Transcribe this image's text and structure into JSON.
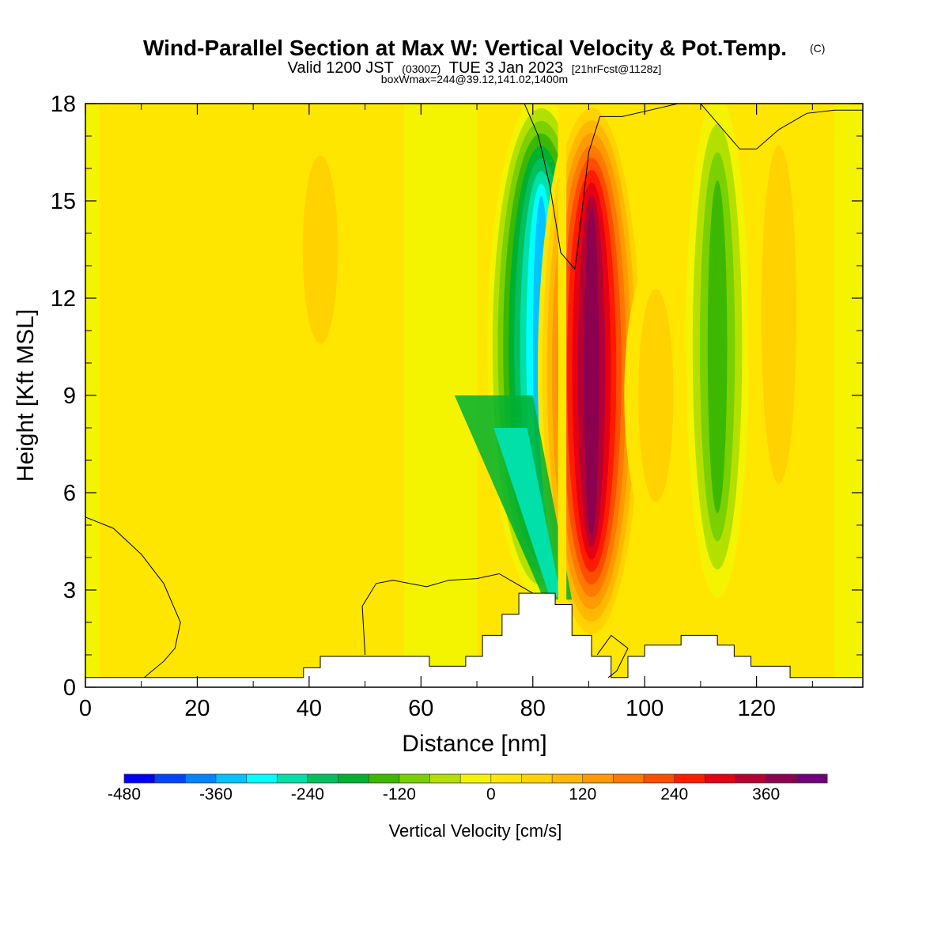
{
  "titles": {
    "main": "Wind-Parallel Section at Max W: Vertical Velocity & Pot.Temp.",
    "main_mark": "(C)",
    "sub_a": "Valid 1200 JST",
    "sub_b": "(0300Z)",
    "sub_c": "TUE 3 Jan 2023",
    "sub_d": "[21hrFcst@1128z]",
    "line3": "boxWmax=244@39.12,141.02,1400m"
  },
  "chart_data": {
    "type": "heatmap",
    "title": "Wind-Parallel Section at Max W: Vertical Velocity & Pot.Temp.",
    "xlabel": "Distance [nm]",
    "ylabel": "Height [Kft MSL]",
    "xlim": [
      0,
      139
    ],
    "ylim": [
      0,
      18
    ],
    "x_ticks": [
      "0",
      "20",
      "40",
      "60",
      "80",
      "100",
      "120"
    ],
    "y_ticks": [
      "0",
      "3",
      "6",
      "9",
      "12",
      "15",
      "18"
    ],
    "field": "Vertical Velocity [cm/s]",
    "features": [
      {
        "name": "downdraft core",
        "x": 81.5,
        "z_range": [
          3,
          18
        ],
        "min_value": -360
      },
      {
        "name": "updraft core",
        "x": 90.5,
        "z_range": [
          1.5,
          18
        ],
        "max_value": 390
      },
      {
        "name": "secondary downdraft",
        "x": 113,
        "z_range": [
          3,
          18
        ],
        "min_value": -150
      },
      {
        "name": "secondary updraft",
        "x": 124,
        "z_range": [
          5,
          18
        ],
        "max_value": 90
      },
      {
        "name": "weak updraft",
        "x": 42,
        "z_range": [
          10,
          17
        ],
        "max_value": 60
      },
      {
        "name": "weak updraft",
        "x": 102,
        "z_range": [
          5,
          13
        ],
        "max_value": 60
      }
    ],
    "terrain": [
      {
        "x": 0,
        "h": 0.3
      },
      {
        "x": 39,
        "h": 0.3
      },
      {
        "x": 39,
        "h": 0.6
      },
      {
        "x": 42,
        "h": 0.6
      },
      {
        "x": 42,
        "h": 0.95
      },
      {
        "x": 61.5,
        "h": 0.95
      },
      {
        "x": 61.5,
        "h": 0.65
      },
      {
        "x": 68,
        "h": 0.65
      },
      {
        "x": 68,
        "h": 0.95
      },
      {
        "x": 71,
        "h": 0.95
      },
      {
        "x": 71,
        "h": 1.6
      },
      {
        "x": 74.5,
        "h": 1.6
      },
      {
        "x": 74.5,
        "h": 2.25
      },
      {
        "x": 77.5,
        "h": 2.25
      },
      {
        "x": 77.5,
        "h": 2.9
      },
      {
        "x": 84,
        "h": 2.9
      },
      {
        "x": 84,
        "h": 2.55
      },
      {
        "x": 87,
        "h": 2.55
      },
      {
        "x": 87,
        "h": 1.6
      },
      {
        "x": 90.5,
        "h": 1.6
      },
      {
        "x": 90.5,
        "h": 0.95
      },
      {
        "x": 94,
        "h": 0.95
      },
      {
        "x": 94,
        "h": 0.3
      },
      {
        "x": 97,
        "h": 0.3
      },
      {
        "x": 97,
        "h": 0.95
      },
      {
        "x": 100,
        "h": 0.95
      },
      {
        "x": 100,
        "h": 1.3
      },
      {
        "x": 106.5,
        "h": 1.3
      },
      {
        "x": 106.5,
        "h": 1.6
      },
      {
        "x": 113,
        "h": 1.6
      },
      {
        "x": 113,
        "h": 1.3
      },
      {
        "x": 116,
        "h": 1.3
      },
      {
        "x": 116,
        "h": 0.95
      },
      {
        "x": 119,
        "h": 0.95
      },
      {
        "x": 119,
        "h": 0.65
      },
      {
        "x": 126,
        "h": 0.65
      },
      {
        "x": 126,
        "h": 0.3
      },
      {
        "x": 139,
        "h": 0.3
      }
    ],
    "potential_temperature_contours": [
      [
        [
          0,
          5.25
        ],
        [
          5,
          4.9
        ],
        [
          10,
          4.1
        ],
        [
          14,
          3.2
        ],
        [
          17,
          2.0
        ],
        [
          16,
          1.2
        ],
        [
          14,
          0.8
        ],
        [
          10.5,
          0.3
        ]
      ],
      [
        [
          50,
          1.0
        ],
        [
          49.5,
          2.5
        ],
        [
          52,
          3.2
        ],
        [
          55,
          3.3
        ],
        [
          61,
          3.1
        ],
        [
          65,
          3.3
        ],
        [
          70,
          3.35
        ],
        [
          74,
          3.5
        ],
        [
          78,
          3.1
        ],
        [
          80,
          2.9
        ]
      ],
      [
        [
          78.5,
          18
        ],
        [
          81,
          17.0
        ],
        [
          83,
          15.5
        ],
        [
          85,
          13.4
        ],
        [
          87.5,
          12.9
        ],
        [
          88,
          13.5
        ],
        [
          90,
          16.5
        ],
        [
          92,
          17.6
        ],
        [
          96,
          17.6
        ],
        [
          101,
          17.8
        ],
        [
          106,
          18
        ]
      ],
      [
        [
          110,
          18
        ],
        [
          113,
          17.4
        ],
        [
          117,
          16.6
        ],
        [
          120,
          16.6
        ],
        [
          124,
          17.2
        ],
        [
          129,
          17.7
        ],
        [
          134,
          17.8
        ],
        [
          139,
          17.8
        ]
      ],
      [
        [
          91.5,
          1.0
        ],
        [
          94,
          1.6
        ],
        [
          97,
          1.2
        ],
        [
          95,
          0.5
        ],
        [
          93.5,
          0.3
        ]
      ]
    ]
  },
  "colorbar": {
    "colors": [
      "#0000ff",
      "#0044ff",
      "#0084ff",
      "#00c3ff",
      "#00ffff",
      "#00e0a8",
      "#00c060",
      "#00b030",
      "#3cb800",
      "#7ad000",
      "#b4e000",
      "#f4f400",
      "#ffe600",
      "#ffd200",
      "#ffb800",
      "#ff9a00",
      "#ff7800",
      "#ff4d00",
      "#ff1a00",
      "#e60014",
      "#b40032",
      "#8c0050",
      "#6e007a"
    ],
    "tick_labels": [
      "-480",
      "-360",
      "-240",
      "-120",
      "0",
      "120",
      "240",
      "360"
    ],
    "label": "Vertical Velocity [cm/s]"
  }
}
